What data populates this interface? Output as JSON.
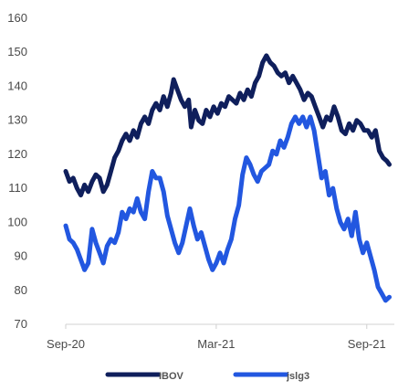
{
  "chart_data": {
    "type": "line",
    "title": "",
    "xlabel": "",
    "ylabel": "",
    "ylim": [
      70,
      160
    ],
    "yticks": [
      70,
      80,
      90,
      100,
      110,
      120,
      130,
      140,
      150,
      160
    ],
    "xticks": [
      {
        "label": "Sep-20",
        "x": 0
      },
      {
        "label": "Mar-21",
        "x": 6
      },
      {
        "label": "Sep-21",
        "x": 12
      }
    ],
    "xlim": [
      0,
      13.1
    ],
    "grid": false,
    "legend_position": "bottom",
    "series": [
      {
        "name": "IBOV",
        "color": "#0f1f5c",
        "points": [
          [
            0.0,
            115
          ],
          [
            0.15,
            112
          ],
          [
            0.3,
            113
          ],
          [
            0.45,
            110
          ],
          [
            0.6,
            108
          ],
          [
            0.75,
            111
          ],
          [
            0.9,
            109
          ],
          [
            1.05,
            112
          ],
          [
            1.2,
            114
          ],
          [
            1.35,
            113
          ],
          [
            1.5,
            109
          ],
          [
            1.65,
            111
          ],
          [
            1.8,
            115
          ],
          [
            1.95,
            119
          ],
          [
            2.1,
            121
          ],
          [
            2.25,
            124
          ],
          [
            2.4,
            126
          ],
          [
            2.55,
            124
          ],
          [
            2.7,
            127
          ],
          [
            2.85,
            125
          ],
          [
            3.0,
            129
          ],
          [
            3.15,
            131
          ],
          [
            3.3,
            129
          ],
          [
            3.45,
            133
          ],
          [
            3.6,
            135
          ],
          [
            3.75,
            133
          ],
          [
            3.9,
            137
          ],
          [
            4.05,
            134
          ],
          [
            4.2,
            138
          ],
          [
            4.3,
            142
          ],
          [
            4.45,
            139
          ],
          [
            4.6,
            136
          ],
          [
            4.75,
            134
          ],
          [
            4.9,
            136
          ],
          [
            5.0,
            128
          ],
          [
            5.15,
            133
          ],
          [
            5.3,
            130
          ],
          [
            5.45,
            129
          ],
          [
            5.6,
            133
          ],
          [
            5.75,
            131
          ],
          [
            5.9,
            134
          ],
          [
            6.05,
            132
          ],
          [
            6.2,
            135
          ],
          [
            6.35,
            134
          ],
          [
            6.5,
            137
          ],
          [
            6.65,
            136
          ],
          [
            6.8,
            135
          ],
          [
            6.95,
            138
          ],
          [
            7.1,
            136
          ],
          [
            7.25,
            139
          ],
          [
            7.4,
            137
          ],
          [
            7.55,
            141
          ],
          [
            7.7,
            143
          ],
          [
            7.85,
            147
          ],
          [
            8.0,
            149
          ],
          [
            8.15,
            147
          ],
          [
            8.3,
            146
          ],
          [
            8.45,
            144
          ],
          [
            8.6,
            143
          ],
          [
            8.75,
            144
          ],
          [
            8.9,
            141
          ],
          [
            9.05,
            143
          ],
          [
            9.2,
            141
          ],
          [
            9.35,
            139
          ],
          [
            9.5,
            136
          ],
          [
            9.65,
            138
          ],
          [
            9.8,
            137
          ],
          [
            9.95,
            134
          ],
          [
            10.1,
            131
          ],
          [
            10.25,
            128
          ],
          [
            10.4,
            131
          ],
          [
            10.55,
            130
          ],
          [
            10.7,
            134
          ],
          [
            10.85,
            131
          ],
          [
            11.0,
            127
          ],
          [
            11.15,
            126
          ],
          [
            11.3,
            129
          ],
          [
            11.45,
            127
          ],
          [
            11.6,
            130
          ],
          [
            11.75,
            129
          ],
          [
            11.9,
            127
          ],
          [
            12.05,
            127
          ],
          [
            12.2,
            125
          ],
          [
            12.35,
            127
          ],
          [
            12.5,
            121
          ],
          [
            12.65,
            119
          ],
          [
            12.8,
            118
          ],
          [
            12.9,
            117
          ]
        ]
      },
      {
        "name": "jslg3",
        "color": "#2257e0",
        "points": [
          [
            0.0,
            99
          ],
          [
            0.15,
            95
          ],
          [
            0.3,
            94
          ],
          [
            0.45,
            92
          ],
          [
            0.6,
            89
          ],
          [
            0.75,
            86
          ],
          [
            0.9,
            88
          ],
          [
            1.05,
            98
          ],
          [
            1.2,
            94
          ],
          [
            1.35,
            91
          ],
          [
            1.5,
            88
          ],
          [
            1.65,
            93
          ],
          [
            1.8,
            95
          ],
          [
            1.95,
            94
          ],
          [
            2.1,
            97
          ],
          [
            2.25,
            103
          ],
          [
            2.4,
            101
          ],
          [
            2.55,
            104
          ],
          [
            2.7,
            103
          ],
          [
            2.85,
            107
          ],
          [
            3.0,
            103
          ],
          [
            3.15,
            101
          ],
          [
            3.3,
            109
          ],
          [
            3.45,
            115
          ],
          [
            3.6,
            113
          ],
          [
            3.75,
            113
          ],
          [
            3.9,
            109
          ],
          [
            4.05,
            102
          ],
          [
            4.2,
            98
          ],
          [
            4.35,
            94
          ],
          [
            4.5,
            91
          ],
          [
            4.65,
            94
          ],
          [
            4.8,
            99
          ],
          [
            4.95,
            104
          ],
          [
            5.1,
            99
          ],
          [
            5.25,
            95
          ],
          [
            5.4,
            97
          ],
          [
            5.55,
            93
          ],
          [
            5.7,
            89
          ],
          [
            5.85,
            86
          ],
          [
            6.0,
            88
          ],
          [
            6.15,
            91
          ],
          [
            6.3,
            88
          ],
          [
            6.45,
            92
          ],
          [
            6.6,
            95
          ],
          [
            6.75,
            101
          ],
          [
            6.9,
            105
          ],
          [
            7.05,
            114
          ],
          [
            7.2,
            119
          ],
          [
            7.35,
            117
          ],
          [
            7.5,
            114
          ],
          [
            7.65,
            112
          ],
          [
            7.8,
            115
          ],
          [
            7.95,
            116
          ],
          [
            8.1,
            117
          ],
          [
            8.25,
            121
          ],
          [
            8.4,
            120
          ],
          [
            8.55,
            124
          ],
          [
            8.7,
            122
          ],
          [
            8.85,
            125
          ],
          [
            9.0,
            129
          ],
          [
            9.15,
            131
          ],
          [
            9.3,
            129
          ],
          [
            9.45,
            131
          ],
          [
            9.6,
            128
          ],
          [
            9.75,
            131
          ],
          [
            9.9,
            127
          ],
          [
            10.05,
            120
          ],
          [
            10.2,
            113
          ],
          [
            10.35,
            115
          ],
          [
            10.5,
            108
          ],
          [
            10.65,
            110
          ],
          [
            10.8,
            104
          ],
          [
            10.95,
            100
          ],
          [
            11.1,
            98
          ],
          [
            11.25,
            101
          ],
          [
            11.4,
            96
          ],
          [
            11.55,
            103
          ],
          [
            11.7,
            95
          ],
          [
            11.85,
            91
          ],
          [
            12.0,
            94
          ],
          [
            12.15,
            90
          ],
          [
            12.3,
            86
          ],
          [
            12.45,
            81
          ],
          [
            12.6,
            79
          ],
          [
            12.75,
            77
          ],
          [
            12.9,
            78
          ]
        ]
      }
    ]
  }
}
